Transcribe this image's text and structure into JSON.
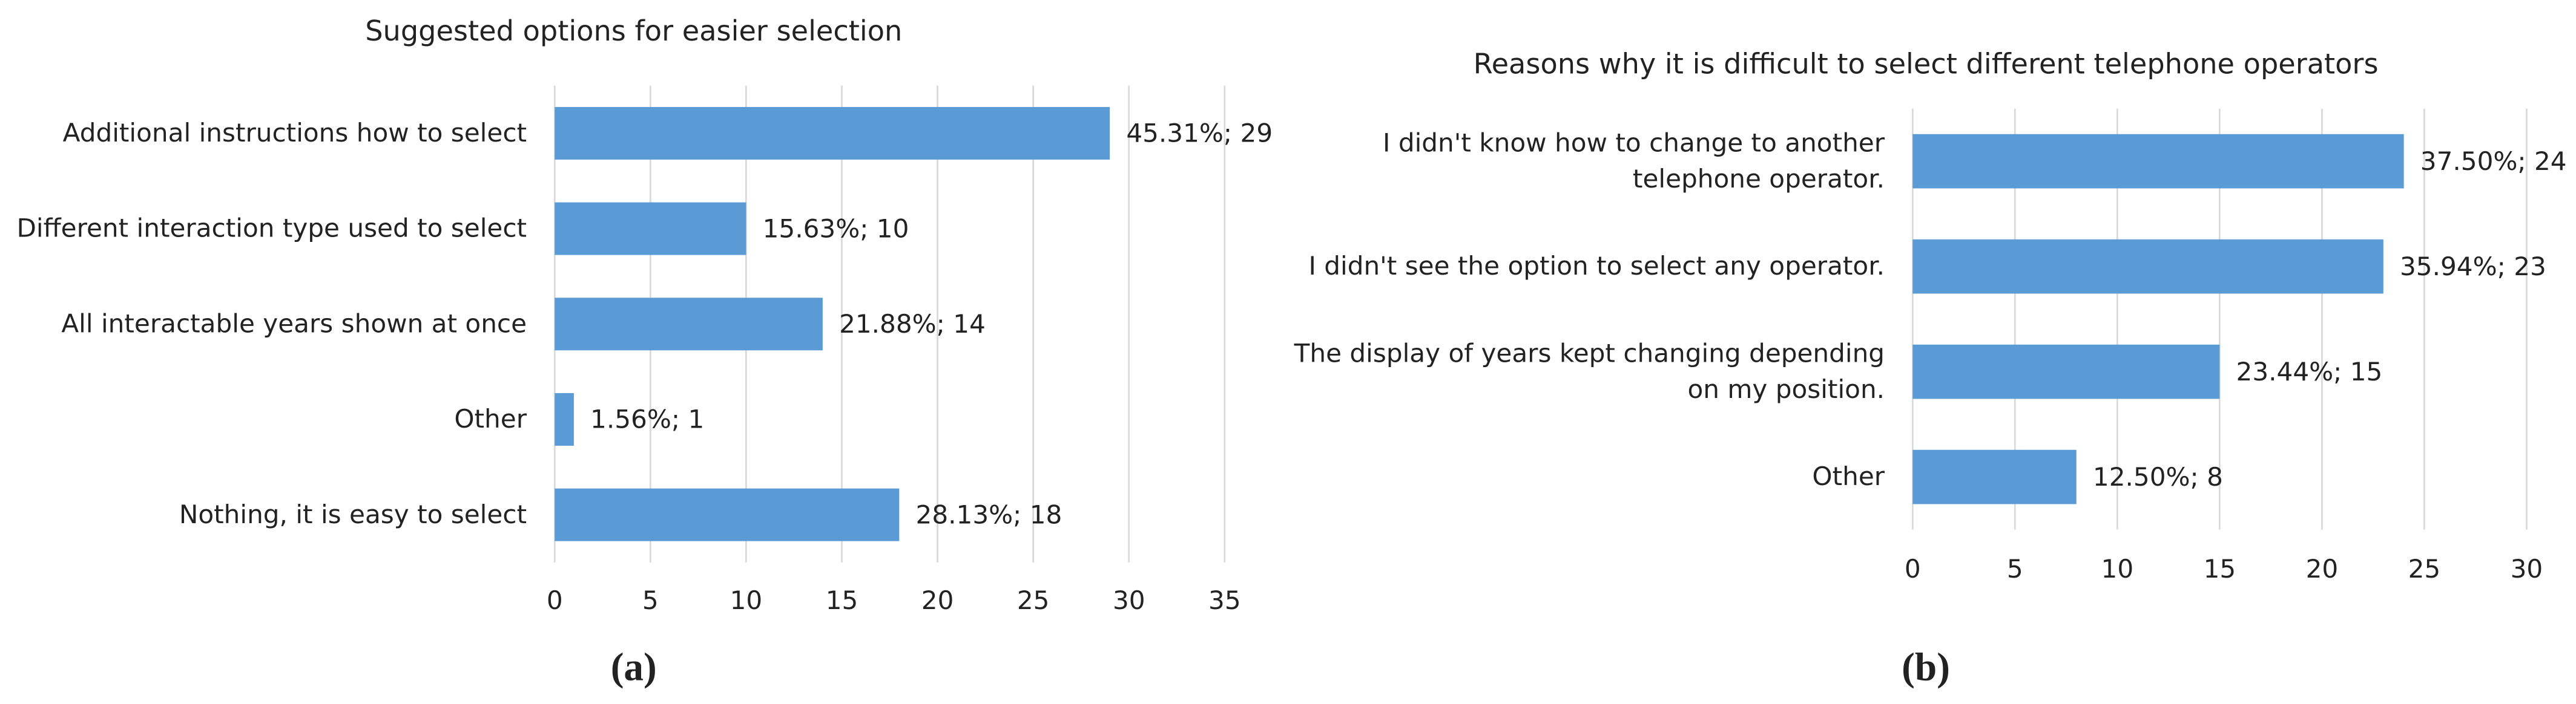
{
  "chart_data": [
    {
      "type": "bar",
      "orientation": "horizontal",
      "title": "Suggested options for easier selection",
      "categories": [
        "Additional instructions how to select",
        "Different interaction type used to select",
        "All interactable years shown at once",
        "Other",
        "Nothing, it is easy to select"
      ],
      "values": [
        29,
        10,
        14,
        1,
        18
      ],
      "value_labels": [
        "45.31%; 29",
        "15.63%; 10",
        "21.88%; 14",
        "1.56%; 1",
        "28.13%; 18"
      ],
      "color": "#5b9bd5",
      "xlim": [
        0,
        35
      ],
      "xticks": [
        0,
        5,
        10,
        15,
        20,
        25,
        30,
        35
      ],
      "grid": true,
      "caption": "(a)"
    },
    {
      "type": "bar",
      "orientation": "horizontal",
      "title": "Reasons why it is difficult to select different telephone operators",
      "categories": [
        "I didn't know how to change to another telephone operator.",
        "I didn't see the option to select any operator.",
        "The display of years kept changing depending on my position.",
        "Other"
      ],
      "values": [
        24,
        23,
        15,
        8
      ],
      "value_labels": [
        "37.50%; 24",
        "35.94%; 23",
        "23.44%; 15",
        "12.50%; 8"
      ],
      "color": "#5b9bd5",
      "xlim": [
        0,
        30
      ],
      "xticks": [
        0,
        5,
        10,
        15,
        20,
        25,
        30
      ],
      "grid": true,
      "caption": "(b)"
    }
  ]
}
